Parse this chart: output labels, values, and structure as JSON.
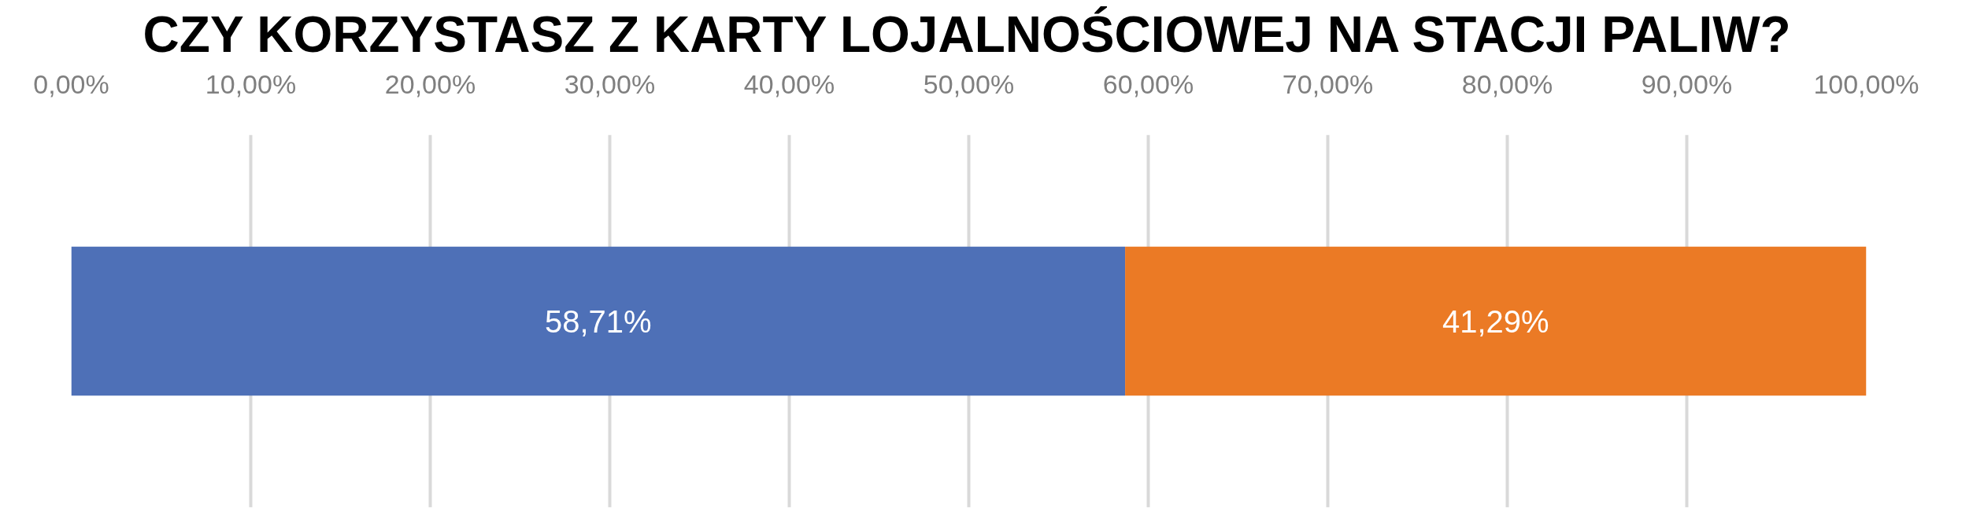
{
  "chart_data": {
    "type": "bar",
    "orientation": "horizontal",
    "stacked": true,
    "title": "CZY KORZYSTASZ Z KARTY LOJALNOŚCIOWEJ NA STACJI PALIW?",
    "categories": [
      null
    ],
    "series": [
      {
        "color": "#4e70b7",
        "values": [
          58.71
        ],
        "value_labels": [
          "58,71%"
        ]
      },
      {
        "color": "#eb7a25",
        "values": [
          41.29
        ],
        "value_labels": [
          "41,29%"
        ]
      }
    ],
    "xlim": [
      0,
      100
    ],
    "xticks": [
      {
        "value": 0,
        "label": "0,00%"
      },
      {
        "value": 10,
        "label": "10,00%"
      },
      {
        "value": 20,
        "label": "20,00%"
      },
      {
        "value": 30,
        "label": "30,00%"
      },
      {
        "value": 40,
        "label": "40,00%"
      },
      {
        "value": 50,
        "label": "50,00%"
      },
      {
        "value": 60,
        "label": "60,00%"
      },
      {
        "value": 70,
        "label": "70,00%"
      },
      {
        "value": 80,
        "label": "80,00%"
      },
      {
        "value": 90,
        "label": "90,00%"
      },
      {
        "value": 100,
        "label": "100,00%"
      }
    ],
    "grid": "x",
    "tick_labels": "x"
  }
}
